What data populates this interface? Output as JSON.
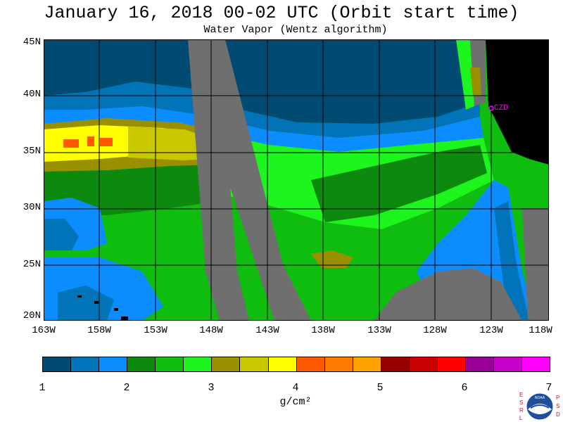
{
  "title": "January 16, 2018  00-02 UTC  (Orbit start time)",
  "subtitle": "Water Vapor (Wentz algorithm)",
  "lat_labels": [
    "45N",
    "40N",
    "35N",
    "30N",
    "25N",
    "20N"
  ],
  "lon_labels": [
    "163W",
    "158W",
    "153W",
    "148W",
    "143W",
    "138W",
    "133W",
    "128W",
    "123W",
    "118W"
  ],
  "station_label": "CZD",
  "colorbar": {
    "colors": [
      "#014b73",
      "#0073b9",
      "#0b8cff",
      "#0d8a0d",
      "#0fbd0f",
      "#1ef41e",
      "#999000",
      "#c9c800",
      "#ffff00",
      "#ff5a00",
      "#ff7b00",
      "#ffa200",
      "#960000",
      "#c80000",
      "#ff0000",
      "#960096",
      "#c800c8",
      "#ff00ff"
    ],
    "ticks": [
      "1",
      "2",
      "3",
      "4",
      "5",
      "6",
      "7"
    ],
    "unit": "g/cm²"
  },
  "map_colors": {
    "no_data": "#6f6f6f",
    "land": "#000000",
    "grid": "#000000",
    "station": "#ff00ff"
  },
  "logo": {
    "left_letters": [
      "E",
      "S",
      "R",
      "L"
    ],
    "right_letters": [
      "P",
      "S",
      "D"
    ],
    "center_text": "NOAA"
  }
}
